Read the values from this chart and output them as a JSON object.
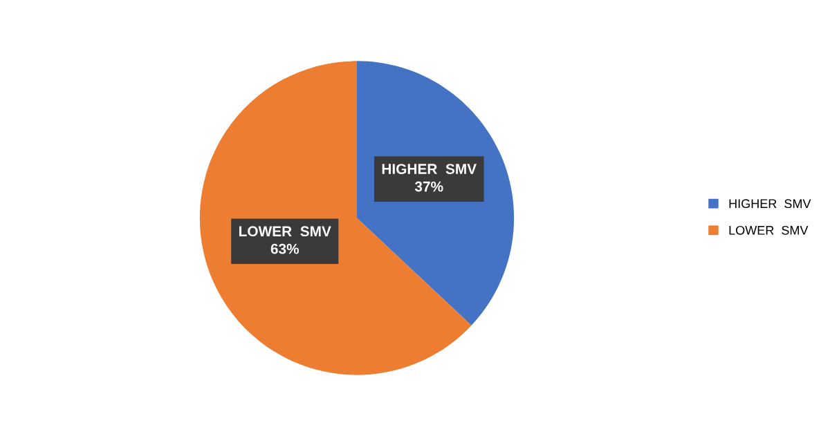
{
  "chart_data": {
    "type": "pie",
    "categories": [
      "HIGHER  SMV",
      "LOWER  SMV"
    ],
    "values": [
      37,
      63
    ],
    "colors": [
      "#4472c4",
      "#ed7d31"
    ],
    "value_labels": [
      "37%",
      "63%"
    ],
    "legend": "right"
  }
}
